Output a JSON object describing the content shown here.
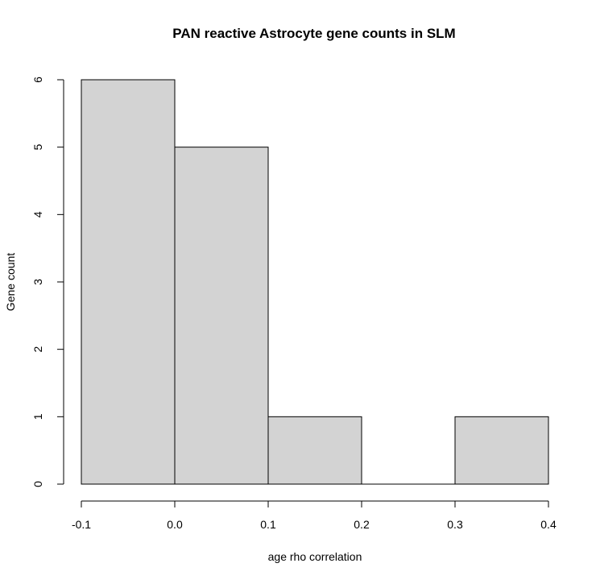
{
  "chart_data": {
    "type": "bar",
    "title": "PAN reactive Astrocyte gene counts in SLM",
    "xlabel": "age rho correlation",
    "ylabel": "Gene count",
    "bins": [
      {
        "start": -0.1,
        "end": 0.0,
        "count": 6
      },
      {
        "start": 0.0,
        "end": 0.1,
        "count": 5
      },
      {
        "start": 0.1,
        "end": 0.2,
        "count": 1
      },
      {
        "start": 0.2,
        "end": 0.3,
        "count": 0
      },
      {
        "start": 0.3,
        "end": 0.4,
        "count": 1
      }
    ],
    "xlim": [
      -0.1,
      0.4
    ],
    "ylim": [
      0,
      6
    ],
    "x_ticks": [
      "-0.1",
      "0.0",
      "0.1",
      "0.2",
      "0.3",
      "0.4"
    ],
    "x_tick_values": [
      -0.1,
      0.0,
      0.1,
      0.2,
      0.3,
      0.4
    ],
    "y_ticks": [
      "0",
      "1",
      "2",
      "3",
      "4",
      "5",
      "6"
    ],
    "y_tick_values": [
      0,
      1,
      2,
      3,
      4,
      5,
      6
    ],
    "grid": false,
    "bar_fill": "#d3d3d3",
    "bar_stroke": "#000000"
  }
}
